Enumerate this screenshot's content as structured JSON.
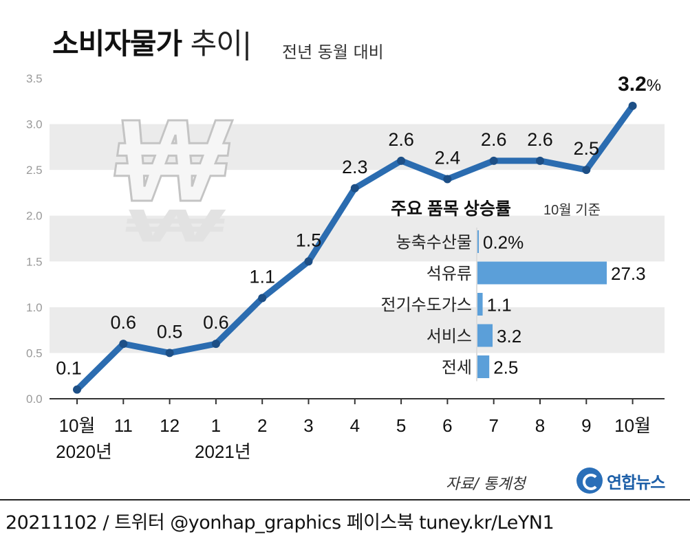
{
  "header": {
    "title_bold": "소비자물가",
    "title_light": "추이",
    "subtitle": "전년 동월 대비"
  },
  "chart_data": [
    {
      "type": "line",
      "x": [
        "10월\n2020년",
        "11",
        "12",
        "1\n2021년",
        "2",
        "3",
        "4",
        "5",
        "6",
        "7",
        "8",
        "9",
        "10월"
      ],
      "values": [
        0.1,
        0.6,
        0.5,
        0.6,
        1.1,
        1.5,
        2.3,
        2.6,
        2.4,
        2.6,
        2.6,
        2.5,
        3.2
      ],
      "data_labels": [
        "0.1",
        "0.6",
        "0.5",
        "0.6",
        "1.1",
        "1.5",
        "2.3",
        "2.6",
        "2.4",
        "2.6",
        "2.6",
        "2.5",
        "3.2"
      ],
      "last_label_unit": "%",
      "y_ticks": [
        "0.0",
        "0.5",
        "1.0",
        "1.5",
        "2.0",
        "2.5",
        "3.0",
        "3.5"
      ],
      "ylim": [
        0,
        3.5
      ],
      "grid": "alternating bands",
      "line_color": "#2b6cb0",
      "band_color": "#ebebeb"
    },
    {
      "type": "bar",
      "orientation": "horizontal",
      "title": "주요 품목 상승률",
      "subtitle": "10월 기준",
      "categories": [
        "농축수산물",
        "석유류",
        "전기수도가스",
        "서비스",
        "전세"
      ],
      "values": [
        0.2,
        27.3,
        1.1,
        3.2,
        2.5
      ],
      "value_labels": [
        "0.2%",
        "27.3",
        "1.1",
        "3.2",
        "2.5"
      ],
      "bar_color": "#5b9fd9"
    }
  ],
  "source": "자료/ 통계청",
  "logo": {
    "text": "연합뉴스",
    "icon": "yonhap-logo-icon"
  },
  "footer": {
    "text": "20211102 / 트위터 @yonhap_graphics  페이스북 tuney.kr/LeYN1"
  }
}
